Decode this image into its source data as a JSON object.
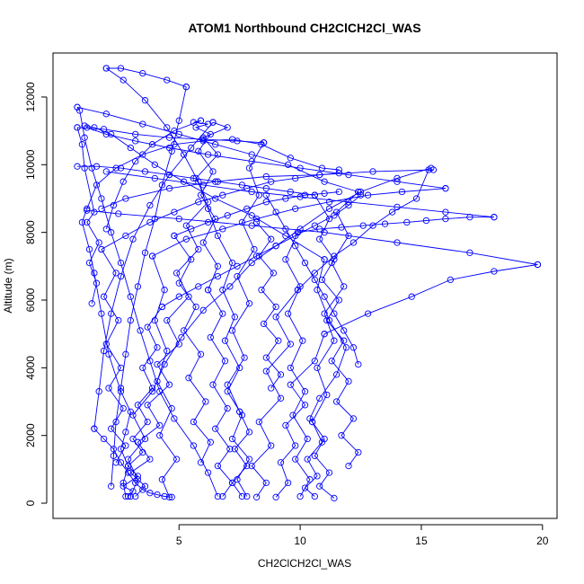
{
  "chart_data": {
    "type": "line",
    "title": "ATOM1 Northbound CH2ClCH2Cl_WAS",
    "xlabel": "CH2ClCH2Cl_WAS",
    "ylabel": "Altitude (m)",
    "xlim": [
      -0.2,
      20.6
    ],
    "ylim": [
      -450,
      13300
    ],
    "x_ticks": [
      5,
      10,
      15,
      20
    ],
    "y_ticks": [
      0,
      2000,
      4000,
      6000,
      8000,
      10000,
      12000
    ],
    "x_tick_labels": [
      "5",
      "10",
      "15",
      "20"
    ],
    "y_tick_labels": [
      "0",
      "2000",
      "4000",
      "6000",
      "8000",
      "10000",
      "12000"
    ],
    "grid": false,
    "marker": "open-circle",
    "color": "#0000ff",
    "series": [
      {
        "x": [
          2.8,
          2.7,
          2.9,
          2.6,
          2.8,
          3.0,
          2.6,
          2.1,
          1.8,
          1.5,
          1.3,
          1.0,
          1.2,
          1.6,
          2.4,
          3.5,
          4.8,
          6.0,
          7.2,
          8.4,
          9.6,
          10.9,
          11.6
        ],
        "y": [
          200,
          600,
          1100,
          1600,
          2100,
          2700,
          3300,
          4400,
          5600,
          6800,
          7500,
          8300,
          8700,
          9400,
          9900,
          10300,
          10600,
          10700,
          10750,
          10600,
          10200,
          9900,
          9850
        ]
      },
      {
        "x": [
          11.4,
          10.8,
          11.2,
          10.6,
          11.0,
          10.4,
          10.8,
          11.5,
          11.9,
          11.2,
          10.7,
          11.0
        ],
        "y": [
          150,
          500,
          900,
          1400,
          1900,
          2500,
          3100,
          3800,
          4600,
          5400,
          6300,
          7200
        ]
      },
      {
        "x": [
          11.0,
          9.4,
          8.0,
          6.5,
          5.2,
          4.0,
          3.0,
          2.2,
          1.5,
          1.1
        ],
        "y": [
          7200,
          7900,
          8500,
          9000,
          9500,
          10000,
          10500,
          10900,
          11100,
          11150
        ]
      },
      {
        "x": [
          3.0,
          3.3,
          2.9,
          3.6,
          3.1,
          3.9,
          4.4,
          5.1,
          6.0,
          7.1,
          8.0,
          9.0,
          10.0,
          11.2,
          12.5,
          14.0,
          15.4
        ],
        "y": [
          200,
          700,
          1300,
          1900,
          2600,
          3300,
          4100,
          4900,
          5700,
          6400,
          7100,
          7600,
          8100,
          8700,
          9200,
          9600,
          9900
        ]
      },
      {
        "x": [
          15.5,
          13.0,
          10.8,
          8.6,
          6.5,
          4.6,
          2.8,
          1.8
        ],
        "y": [
          9850,
          9800,
          9700,
          9650,
          9500,
          9300,
          9000,
          8700
        ]
      },
      {
        "x": [
          9.0,
          9.5,
          9.2,
          9.8,
          9.4,
          10.2,
          9.6,
          10.6,
          11.0
        ],
        "y": [
          180,
          600,
          1200,
          1700,
          2300,
          2900,
          3500,
          4200,
          5000
        ]
      },
      {
        "x": [
          11.0,
          12.8,
          14.6,
          16.2,
          18.0,
          19.8
        ],
        "y": [
          5000,
          5600,
          6100,
          6600,
          6850,
          7050
        ]
      },
      {
        "x": [
          19.8,
          17.0,
          14.0,
          11.0,
          8.0,
          5.0,
          2.5,
          1.2
        ],
        "y": [
          7050,
          7400,
          7700,
          8000,
          8200,
          8400,
          8550,
          8650
        ]
      },
      {
        "x": [
          6.6,
          6.2,
          5.6,
          4.8,
          4.2,
          3.8,
          3.4,
          3.0,
          2.6,
          2.2,
          1.8,
          1.4,
          1.1,
          0.9,
          0.8
        ],
        "y": [
          200,
          900,
          1700,
          2500,
          3300,
          4200,
          5100,
          6100,
          7100,
          8000,
          9000,
          9900,
          10800,
          11600,
          11700
        ]
      },
      {
        "x": [
          0.8,
          2.0,
          3.5,
          5.0,
          6.5,
          8.0,
          9.5,
          11.0,
          12.4
        ],
        "y": [
          11700,
          11500,
          11200,
          10900,
          10600,
          10300,
          10000,
          9500,
          9200
        ]
      },
      {
        "x": [
          12.4,
          11.5,
          12.0,
          11.3,
          11.8,
          11.0,
          11.4,
          10.7,
          11.1,
          10.5
        ],
        "y": [
          9200,
          8600,
          7900,
          7100,
          6400,
          5600,
          4800,
          4000,
          3200,
          2400
        ]
      },
      {
        "x": [
          10.5,
          10.9,
          10.3,
          10.7,
          10.2,
          10.6
        ],
        "y": [
          2400,
          1800,
          1300,
          800,
          450,
          200
        ]
      },
      {
        "x": [
          7.8,
          7.4,
          7.9,
          7.2,
          7.6,
          7.0,
          7.5,
          6.9,
          7.3,
          6.8,
          7.2,
          6.6,
          6.2,
          5.8,
          5.2,
          4.5,
          3.6,
          2.7,
          2.0
        ],
        "y": [
          200,
          700,
          1300,
          1900,
          2600,
          3300,
          4000,
          4800,
          5500,
          6300,
          7100,
          7900,
          8700,
          9500,
          10300,
          11100,
          11900,
          12500,
          12850
        ]
      },
      {
        "x": [
          2.0,
          2.6,
          3.5,
          4.5,
          5.3
        ],
        "y": [
          12850,
          12850,
          12700,
          12500,
          12300
        ]
      },
      {
        "x": [
          5.3,
          5.0,
          4.7,
          4.3,
          4.0,
          3.6,
          3.3,
          3.0,
          2.8,
          2.6,
          2.4,
          2.3,
          2.2
        ],
        "y": [
          12300,
          11300,
          10400,
          9400,
          8400,
          7400,
          6400,
          5400,
          4400,
          3400,
          2400,
          1400,
          500
        ]
      },
      {
        "x": [
          4.6,
          4.3,
          4.9,
          4.2,
          4.7,
          4.1,
          4.5,
          4.0,
          4.4,
          3.9
        ],
        "y": [
          180,
          700,
          1300,
          2000,
          2800,
          3600,
          4500,
          5400,
          6300,
          7300
        ]
      },
      {
        "x": [
          3.9,
          5.3,
          6.8,
          8.2,
          9.8,
          11.2,
          12.8,
          14.2,
          16.0
        ],
        "y": [
          7300,
          7800,
          8100,
          8400,
          8700,
          8900,
          9100,
          9200,
          9300
        ]
      },
      {
        "x": [
          16.0,
          14.0,
          12.0,
          10.0,
          8.0,
          6.2,
          4.6,
          3.2,
          2.0,
          1.2
        ],
        "y": [
          9300,
          9500,
          9700,
          9900,
          10100,
          10300,
          10500,
          10700,
          10900,
          11100
        ]
      },
      {
        "x": [
          8.2,
          8.6,
          8.0,
          8.8,
          8.3,
          9.2,
          8.6,
          9.6,
          9.0,
          9.9
        ],
        "y": [
          180,
          600,
          1100,
          1700,
          2400,
          3100,
          3900,
          4700,
          5500,
          6300
        ]
      },
      {
        "x": [
          9.9,
          10.6,
          11.4,
          12.2,
          13.0,
          13.8,
          14.8,
          15.3
        ],
        "y": [
          6300,
          6800,
          7300,
          7700,
          8200,
          8600,
          9000,
          9850
        ]
      },
      {
        "x": [
          3.2,
          3.6,
          3.0,
          3.8,
          3.3,
          4.2,
          3.7,
          4.6,
          4.1,
          5.0,
          4.5,
          5.4,
          4.9,
          5.8,
          5.3,
          6.2,
          5.7,
          6.6,
          6.0,
          7.0,
          6.4
        ],
        "y": [
          200,
          500,
          900,
          1300,
          1800,
          2300,
          2900,
          3500,
          4100,
          4700,
          5400,
          6100,
          6800,
          7500,
          8200,
          8900,
          9600,
          10300,
          10800,
          11100,
          11250
        ]
      },
      {
        "x": [
          6.4,
          5.5,
          4.6,
          3.8,
          3.1,
          2.6,
          2.2,
          1.9,
          1.7,
          1.5
        ],
        "y": [
          11250,
          10500,
          9700,
          8800,
          7800,
          6700,
          5600,
          4500,
          3300,
          2200
        ]
      },
      {
        "x": [
          1.5,
          1.9,
          2.3,
          2.6,
          2.9,
          3.2,
          3.5,
          3.8,
          4.1,
          4.4,
          4.7
        ],
        "y": [
          2200,
          1900,
          1600,
          1200,
          900,
          600,
          400,
          300,
          250,
          200,
          180
        ]
      },
      {
        "x": [
          12.0,
          12.4,
          11.7,
          12.2,
          11.5,
          12.0,
          11.3,
          11.8,
          11.1,
          11.6,
          10.9,
          11.4,
          10.8,
          11.2,
          10.6
        ],
        "y": [
          1100,
          1500,
          2000,
          2500,
          3000,
          3600,
          4200,
          4800,
          5400,
          6000,
          6600,
          7200,
          7800,
          8400,
          9100
        ]
      },
      {
        "x": [
          10.6,
          9.6,
          8.6,
          7.6,
          6.6,
          5.6,
          4.6,
          3.6,
          2.6,
          1.6,
          0.8
        ],
        "y": [
          9100,
          9200,
          9300,
          9400,
          9500,
          9600,
          9700,
          9800,
          9900,
          9950,
          9950
        ]
      },
      {
        "x": [
          2.9,
          3.1,
          2.7,
          3.3,
          2.9,
          3.5,
          3.1,
          3.7,
          3.3,
          3.9,
          3.5,
          4.1,
          3.7,
          4.3
        ],
        "y": [
          200,
          350,
          500,
          800,
          1100,
          1500,
          1900,
          2400,
          2900,
          3400,
          4000,
          4600,
          5200,
          5800
        ]
      },
      {
        "x": [
          4.3,
          5.0,
          5.8,
          6.6,
          7.4,
          8.2,
          9.0,
          9.8,
          10.6,
          11.4,
          12.0,
          12.5
        ],
        "y": [
          5800,
          6100,
          6400,
          6700,
          7000,
          7300,
          7600,
          7900,
          8200,
          8500,
          8800,
          9100
        ]
      },
      {
        "x": [
          5.9,
          6.3,
          5.6,
          6.1,
          5.4,
          5.9,
          5.2,
          5.7,
          5.0,
          5.5,
          4.8
        ],
        "y": [
          1200,
          1800,
          2400,
          3000,
          3700,
          4400,
          5100,
          5800,
          6500,
          7200,
          7900
        ]
      },
      {
        "x": [
          4.8,
          5.5,
          6.2,
          7.0,
          7.8,
          8.6,
          9.4,
          10.2,
          11.0,
          11.6
        ],
        "y": [
          7900,
          8100,
          8300,
          8500,
          8700,
          8900,
          9000,
          9100,
          9150,
          9200
        ]
      },
      {
        "x": [
          1.4,
          1.6,
          1.3,
          1.7,
          1.2,
          1.5,
          1.1,
          1.0,
          0.8
        ],
        "y": [
          5900,
          6500,
          7100,
          7700,
          8300,
          8600,
          9900,
          10600,
          11100
        ]
      },
      {
        "x": [
          0.8,
          1.9,
          3.2,
          4.6,
          6.0,
          7.4,
          8.5
        ],
        "y": [
          11100,
          11050,
          10900,
          10800,
          10750,
          10700,
          10650
        ]
      },
      {
        "x": [
          8.5,
          7.9,
          8.3,
          7.6,
          8.1,
          7.4,
          7.9,
          7.2,
          7.7,
          7.0,
          7.5
        ],
        "y": [
          10650,
          9900,
          9100,
          8300,
          7500,
          6700,
          5900,
          5100,
          4300,
          3500,
          2700
        ]
      },
      {
        "x": [
          7.5,
          7.9,
          7.3,
          7.8,
          7.2,
          7.6
        ],
        "y": [
          2700,
          2100,
          1600,
          1100,
          600,
          200
        ]
      },
      {
        "x": [
          10.0,
          10.4,
          9.8,
          10.3,
          9.7,
          10.2,
          9.6,
          10.1,
          9.5,
          10.0,
          9.4,
          9.9
        ],
        "y": [
          200,
          700,
          1300,
          1900,
          2600,
          3300,
          4000,
          4800,
          5600,
          6400,
          7200,
          8000
        ]
      },
      {
        "x": [
          9.9,
          10.8,
          11.7,
          12.6,
          13.5,
          14.4,
          15.2,
          16.0,
          17.0,
          18.0
        ],
        "y": [
          8000,
          8100,
          8150,
          8200,
          8250,
          8300,
          8350,
          8400,
          8450,
          8450
        ]
      },
      {
        "x": [
          18.0,
          16.0,
          14.0,
          12.0,
          10.0,
          8.0,
          6.0,
          4.0,
          2.0
        ],
        "y": [
          8450,
          8600,
          8750,
          8900,
          9050,
          9200,
          9400,
          9600,
          9800
        ]
      },
      {
        "x": [
          2.4,
          2.8,
          2.2,
          2.7,
          2.1,
          2.6,
          2.0,
          2.5,
          1.9,
          2.4,
          1.8
        ],
        "y": [
          1200,
          1700,
          2200,
          2800,
          3400,
          4000,
          4700,
          5400,
          6100,
          6800,
          7500
        ]
      },
      {
        "x": [
          1.8,
          2.8,
          3.8,
          4.8,
          5.8,
          6.8,
          7.8,
          8.8,
          9.8,
          10.8,
          11.6
        ],
        "y": [
          7500,
          7900,
          8300,
          8600,
          8900,
          9100,
          9300,
          9500,
          9600,
          9700,
          9750
        ]
      },
      {
        "x": [
          6.8,
          7.2,
          6.6,
          7.1,
          6.5,
          7.0,
          6.4,
          6.9,
          6.3,
          6.8,
          6.2
        ],
        "y": [
          200,
          600,
          1100,
          1600,
          2200,
          2800,
          3500,
          4200,
          4900,
          5600,
          6300
        ]
      },
      {
        "x": [
          6.2,
          6.6,
          6.0,
          6.5,
          5.9,
          6.4,
          5.8,
          6.3,
          5.7,
          6.2,
          5.6,
          5.9
        ],
        "y": [
          6300,
          7000,
          7700,
          8400,
          9100,
          9800,
          10400,
          10900,
          11100,
          11200,
          11250,
          11300
        ]
      },
      {
        "x": [
          5.9,
          4.8,
          3.9,
          3.2,
          2.7,
          2.3,
          2.0
        ],
        "y": [
          11300,
          11000,
          10600,
          10100,
          9500,
          8800,
          8100
        ]
      },
      {
        "x": [
          8.8,
          9.2,
          8.6,
          9.1,
          8.5,
          9.0,
          8.4,
          8.9,
          8.3,
          8.8,
          8.2
        ],
        "y": [
          3400,
          3800,
          4300,
          4800,
          5300,
          5800,
          6300,
          6800,
          7300,
          7800,
          8300
        ]
      },
      {
        "x": [
          12.4,
          12.2,
          11.8,
          11.4,
          11.0,
          10.6,
          10.2,
          9.8,
          9.4,
          9.0,
          8.6
        ],
        "y": [
          4100,
          4600,
          5100,
          5600,
          6100,
          6600,
          7100,
          7600,
          8100,
          8600,
          9100
        ]
      }
    ]
  }
}
